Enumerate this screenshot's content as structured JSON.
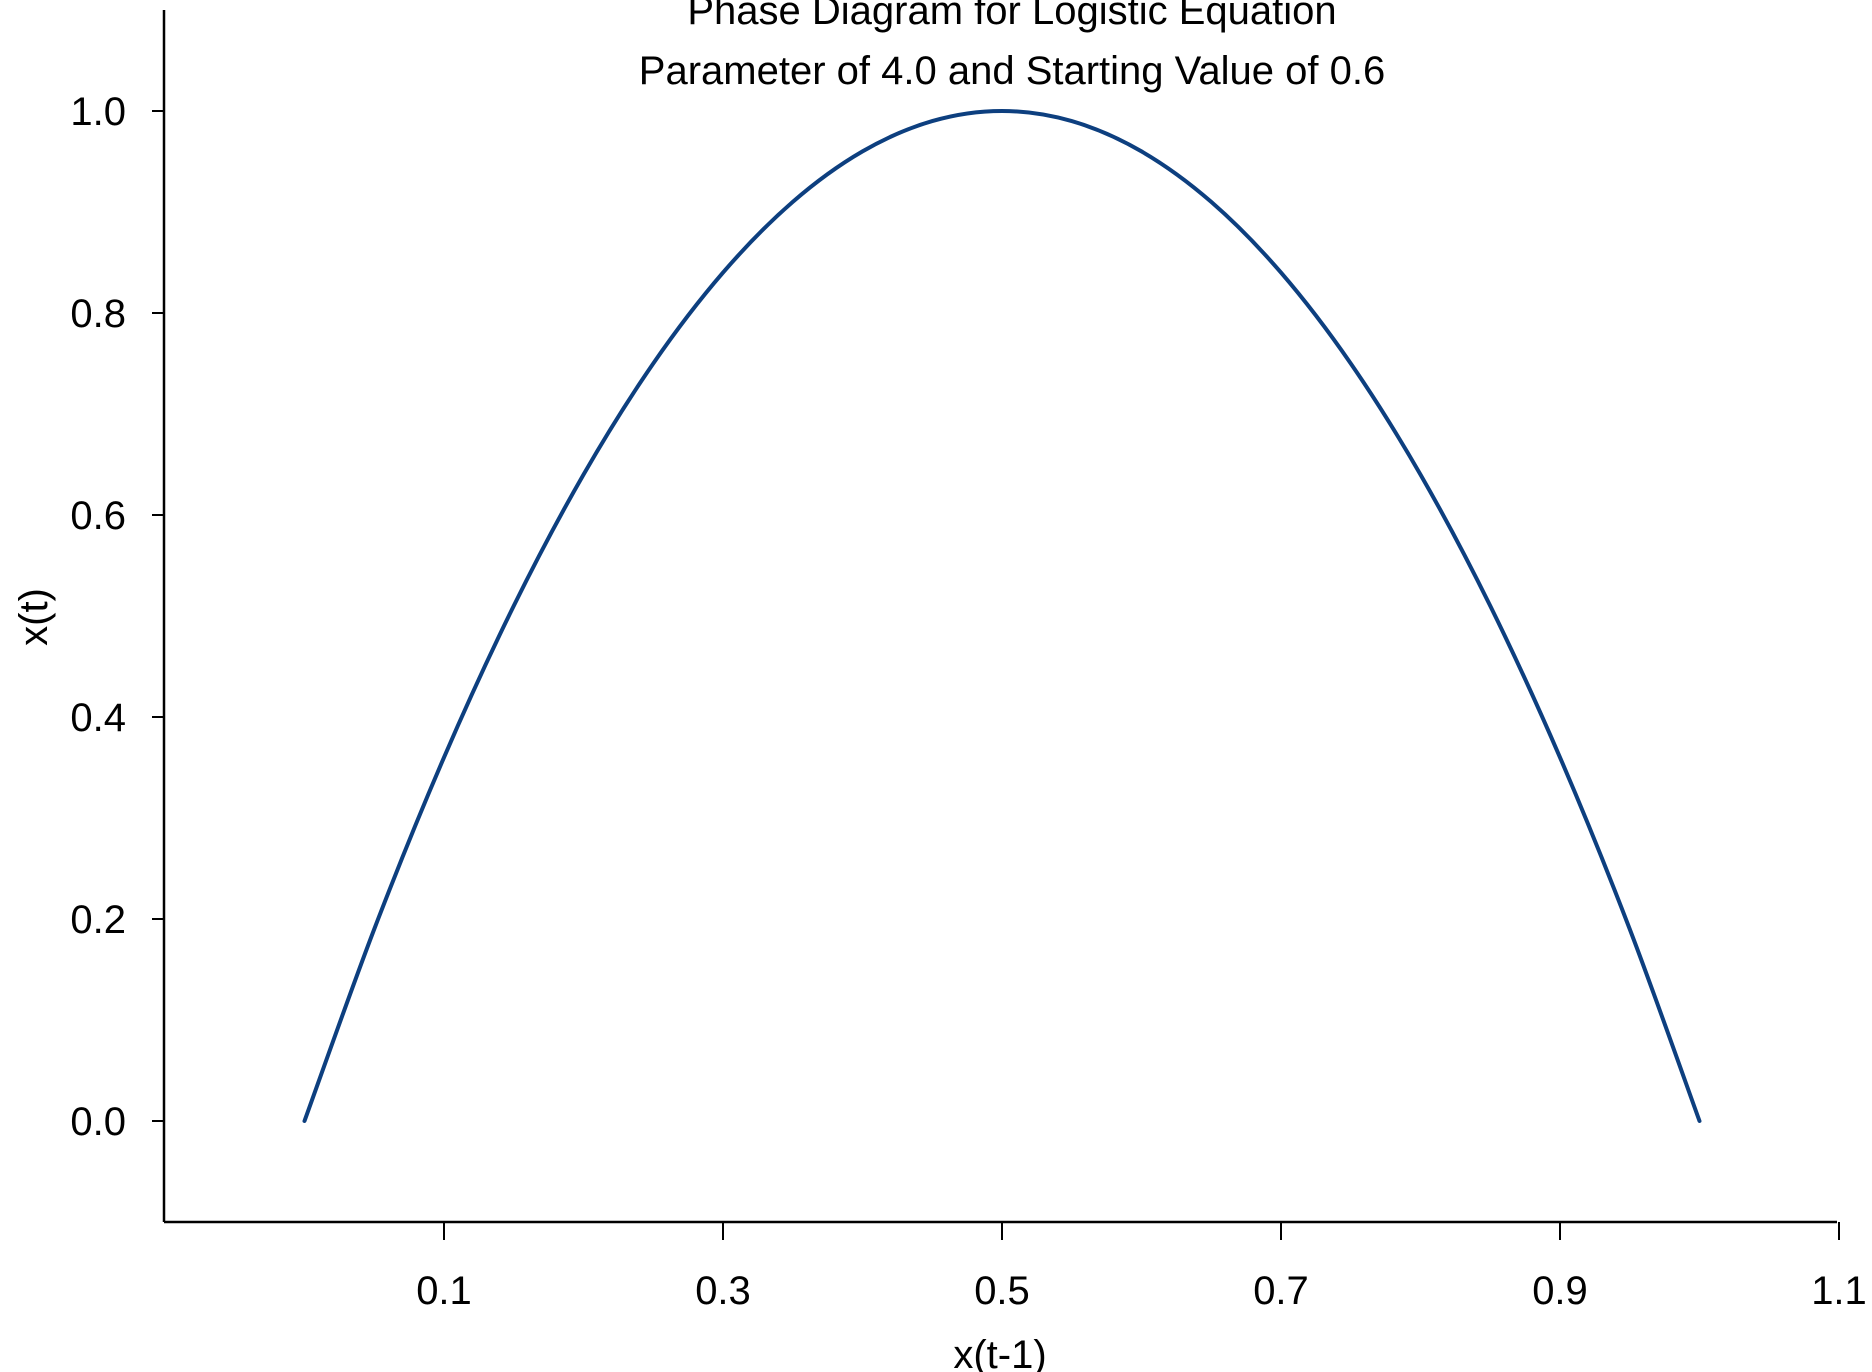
{
  "chart_data": {
    "type": "line",
    "title": "Phase Diagram for Logistic Equation",
    "subtitle": "Parameter of 4.0 and Starting Value of 0.6",
    "xlabel": "x(t-1)",
    "ylabel": "x(t)",
    "xlim": [
      -0.1,
      1.1
    ],
    "ylim": [
      -0.1,
      1.1
    ],
    "x_ticks": [
      "0.1",
      "0.3",
      "0.5",
      "0.7",
      "0.9",
      "1.1"
    ],
    "y_ticks": [
      "0.0",
      "0.2",
      "0.4",
      "0.6",
      "0.8",
      "1.0"
    ],
    "grid": false,
    "legend": "none",
    "series": [
      {
        "color": "#0d3f7f",
        "x": [
          0.0,
          0.05,
          0.1,
          0.15,
          0.2,
          0.25,
          0.3,
          0.35,
          0.4,
          0.45,
          0.5,
          0.55,
          0.6,
          0.65,
          0.7,
          0.75,
          0.8,
          0.85,
          0.9,
          0.95,
          1.0
        ],
        "y": [
          0.0,
          0.19,
          0.36,
          0.51,
          0.64,
          0.75,
          0.84,
          0.91,
          0.96,
          0.99,
          1.0,
          0.99,
          0.96,
          0.91,
          0.84,
          0.75,
          0.64,
          0.51,
          0.36,
          0.19,
          0.0
        ]
      }
    ]
  }
}
